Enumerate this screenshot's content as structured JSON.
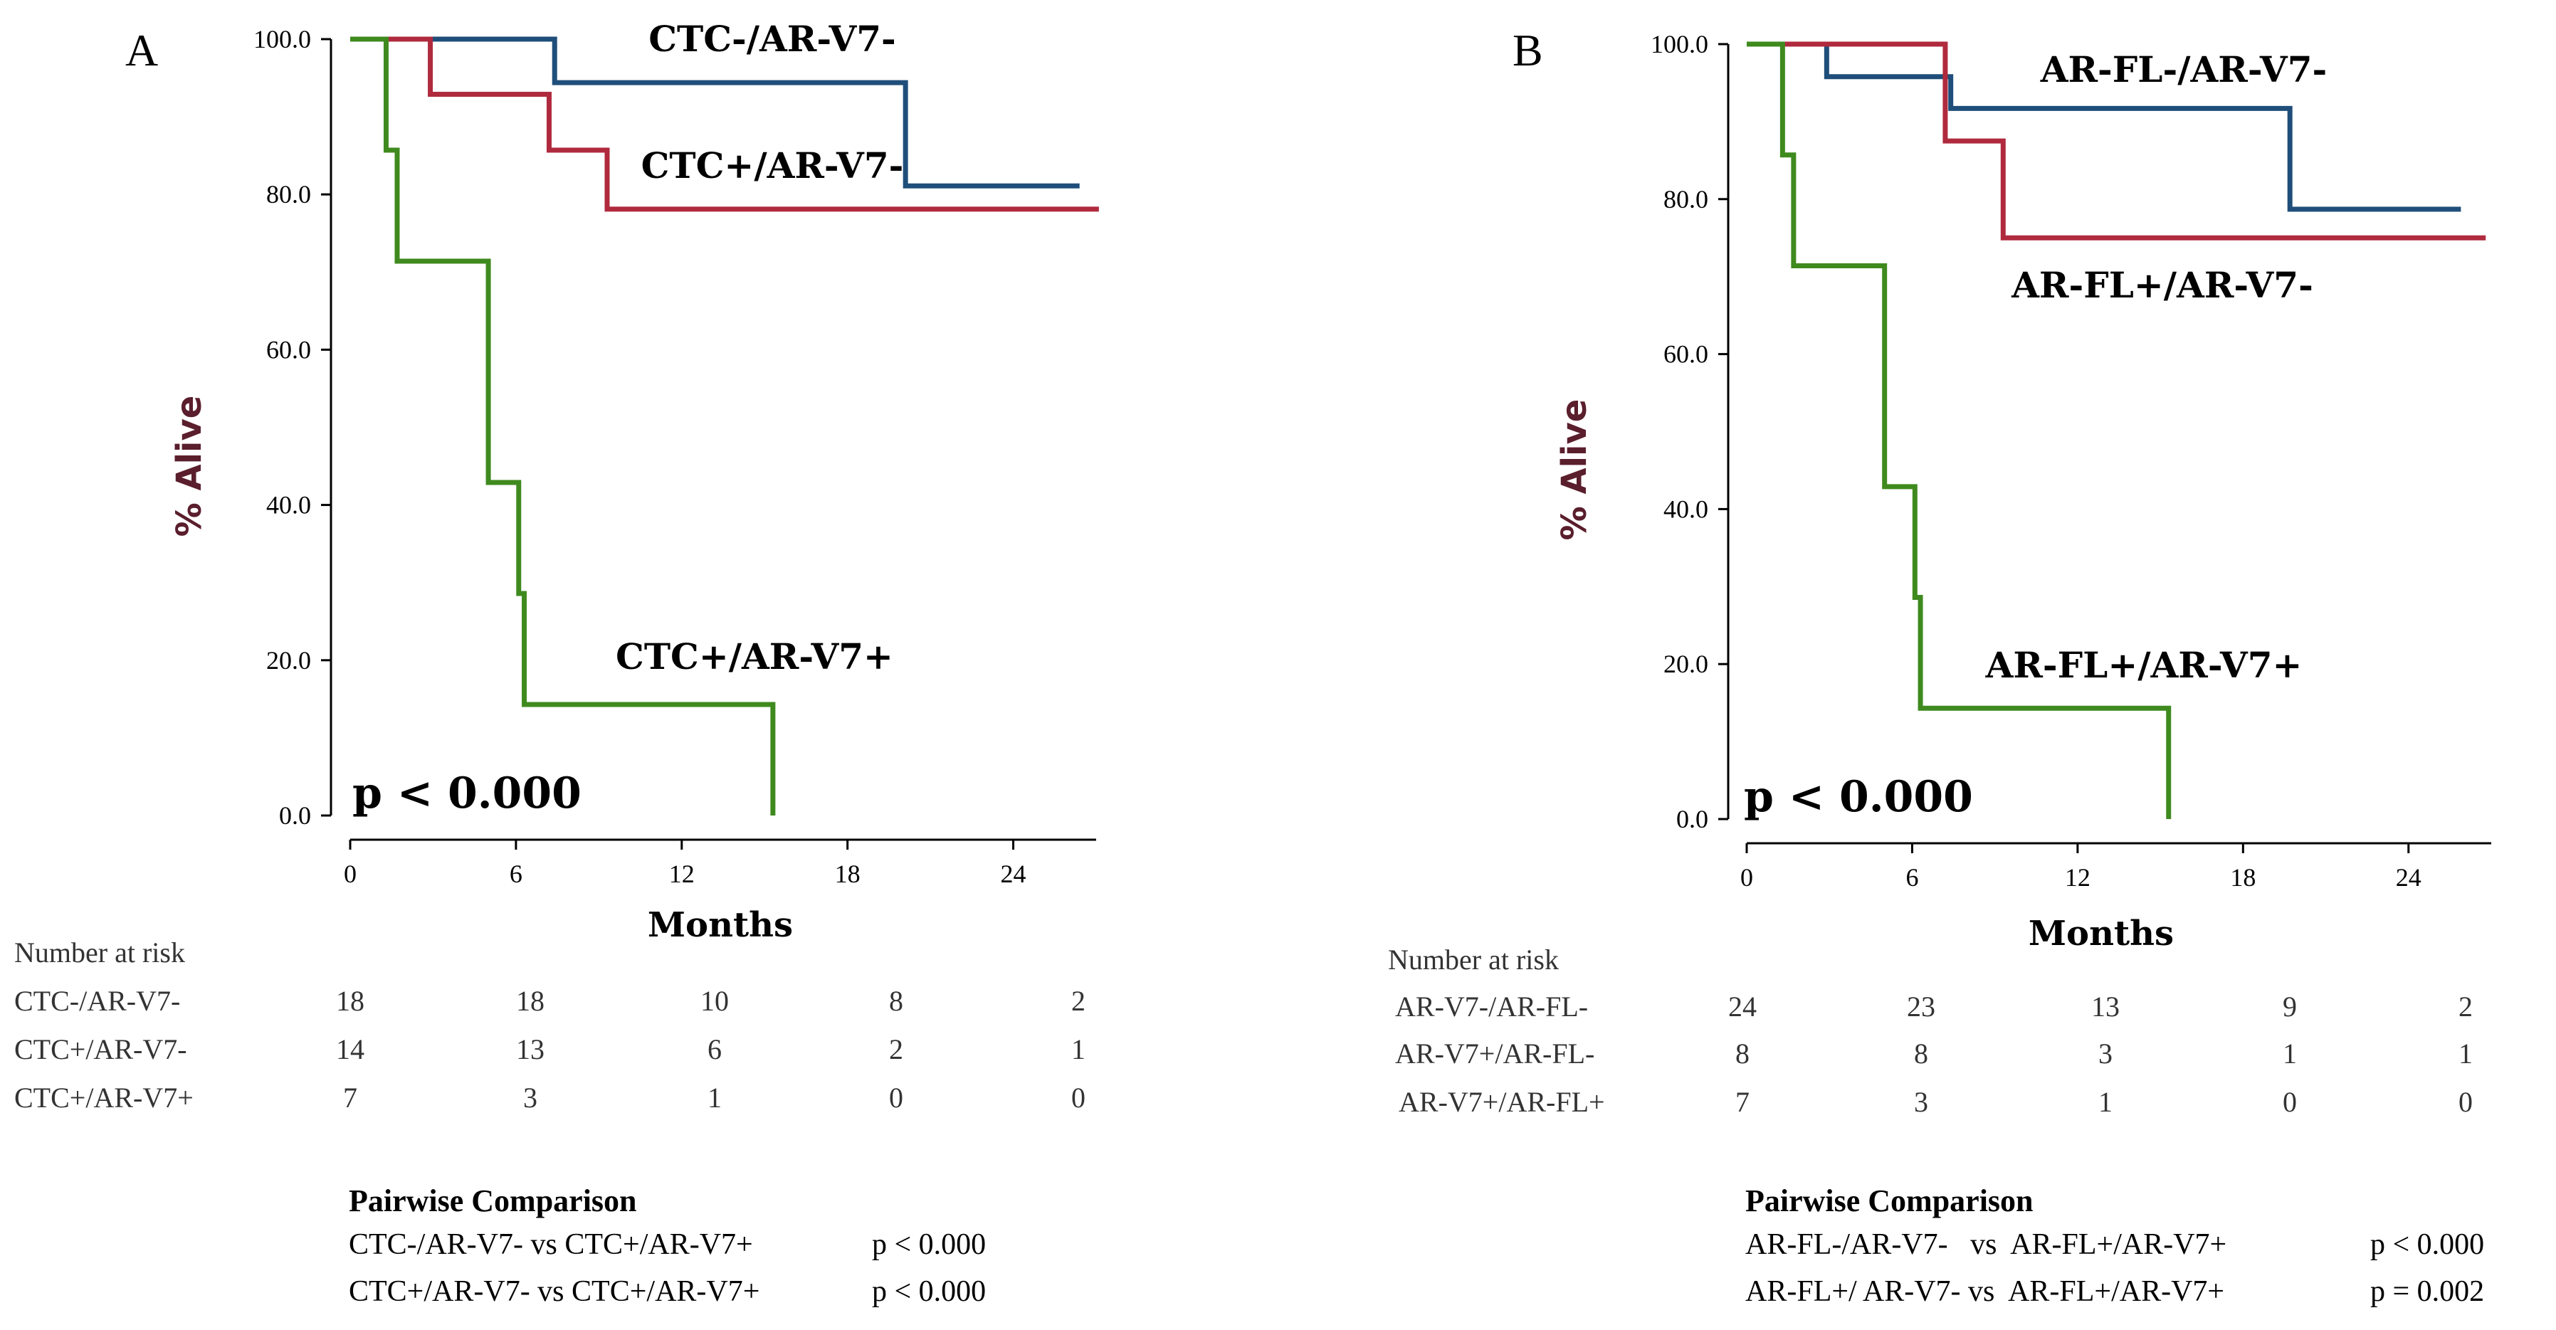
{
  "chart_data": [
    {
      "type": "line",
      "panel": "A",
      "ylabel": "% Alive",
      "xlabel": "Months",
      "xlim": [
        0,
        27
      ],
      "ylim": [
        0,
        100
      ],
      "x_ticks": [
        "0",
        "6",
        "12",
        "18",
        "24"
      ],
      "y_ticks": [
        "0.0",
        "20.0",
        "40.0",
        "60.0",
        "80.0",
        "100.0"
      ],
      "p_value": "p < 0.000",
      "series": [
        {
          "name": "CTC-/AR-V7-",
          "color": "#1f4e7a",
          "steps": [
            [
              0,
              100
            ],
            [
              7.4,
              94.4
            ],
            [
              20.1,
              81.1
            ],
            [
              26.4,
              81.1
            ]
          ]
        },
        {
          "name": "CTC+/AR-V7-",
          "color": "#b02a3e",
          "steps": [
            [
              0,
              100
            ],
            [
              2.9,
              92.9
            ],
            [
              7.2,
              85.7
            ],
            [
              9.3,
              78.1
            ],
            [
              27.1,
              78.1
            ]
          ]
        },
        {
          "name": "CTC+/AR-V7+",
          "color": "#3f8a1e",
          "steps": [
            [
              0,
              100
            ],
            [
              1.3,
              85.7
            ],
            [
              1.7,
              71.4
            ],
            [
              5.0,
              42.9
            ],
            [
              6.1,
              28.6
            ],
            [
              6.3,
              14.3
            ],
            [
              15.3,
              0
            ]
          ]
        }
      ],
      "risk_table": {
        "title": "Number at risk",
        "rows": [
          {
            "label": "CTC-/AR-V7-",
            "values": [
              "18",
              "18",
              "10",
              "8",
              "2"
            ]
          },
          {
            "label": "CTC+/AR-V7-",
            "values": [
              "14",
              "13",
              "6",
              "2",
              "1"
            ]
          },
          {
            "label": "CTC+/AR-V7+",
            "values": [
              "7",
              "3",
              "1",
              "0",
              "0"
            ]
          }
        ]
      },
      "pairwise": {
        "title": "Pairwise Comparison",
        "rows": [
          {
            "comparison": "CTC-/AR-V7- vs CTC+/AR-V7+",
            "p": "p < 0.000"
          },
          {
            "comparison": "CTC+/AR-V7- vs CTC+/AR-V7+",
            "p": "p < 0.000"
          }
        ]
      }
    },
    {
      "type": "line",
      "panel": "B",
      "ylabel": "% Alive",
      "xlabel": "Months",
      "xlim": [
        0,
        27
      ],
      "ylim": [
        0,
        100
      ],
      "x_ticks": [
        "0",
        "6",
        "12",
        "18",
        "24"
      ],
      "y_ticks": [
        "0.0",
        "20.0",
        "40.0",
        "60.0",
        "80.0",
        "100.0"
      ],
      "p_value": "p < 0.000",
      "series": [
        {
          "name": "AR-FL-/AR-V7-",
          "color": "#1f4e7a",
          "steps": [
            [
              0,
              100
            ],
            [
              2.9,
              95.8
            ],
            [
              7.4,
              91.7
            ],
            [
              19.7,
              78.7
            ],
            [
              25.9,
              78.7
            ]
          ]
        },
        {
          "name": "AR-FL+/AR-V7-",
          "color": "#b02a3e",
          "steps": [
            [
              0,
              100
            ],
            [
              7.2,
              87.5
            ],
            [
              9.3,
              75.0
            ],
            [
              26.8,
              75.0
            ]
          ]
        },
        {
          "name": "AR-FL+/AR-V7+",
          "color": "#3f8a1e",
          "steps": [
            [
              0,
              100
            ],
            [
              1.3,
              85.7
            ],
            [
              1.7,
              71.4
            ],
            [
              5.0,
              42.9
            ],
            [
              6.1,
              28.6
            ],
            [
              6.3,
              14.3
            ],
            [
              15.3,
              0
            ]
          ]
        }
      ],
      "risk_table": {
        "title": "Number at risk",
        "rows": [
          {
            "label": "AR-V7-/AR-FL-",
            "values": [
              "24",
              "23",
              "13",
              "9",
              "2"
            ]
          },
          {
            "label": "AR-V7+/AR-FL-",
            "values": [
              "8",
              "8",
              "3",
              "1",
              "1"
            ]
          },
          {
            "label": "AR-V7+/AR-FL+",
            "values": [
              "7",
              "3",
              "1",
              "0",
              "0"
            ]
          }
        ]
      },
      "pairwise": {
        "title": "Pairwise Comparison",
        "rows": [
          {
            "comparison": "AR-FL-/AR-V7-   vs  AR-FL+/AR-V7+",
            "p": "p < 0.000"
          },
          {
            "comparison": "AR-FL+/ AR-V7- vs  AR-FL+/AR-V7+",
            "p": "p = 0.002"
          }
        ]
      }
    }
  ]
}
